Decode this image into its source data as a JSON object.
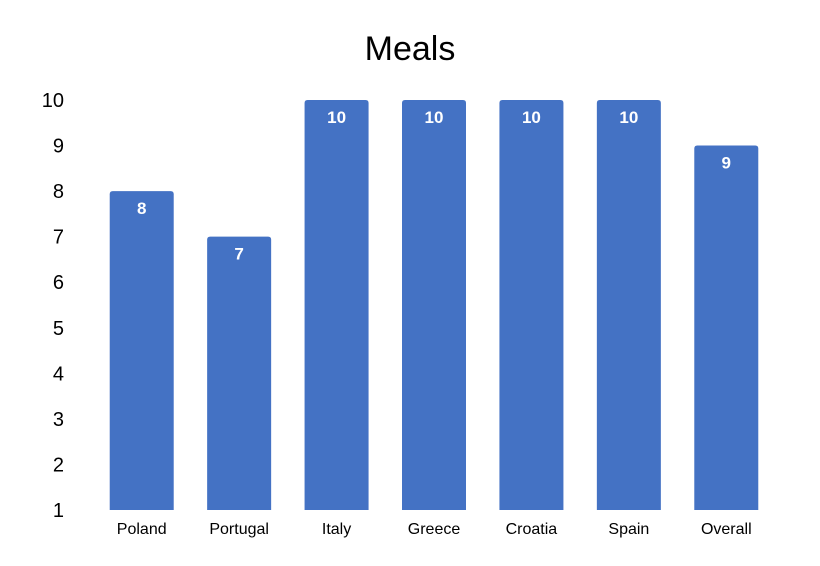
{
  "chart_data": {
    "type": "bar",
    "title": "Meals",
    "xlabel": "",
    "ylabel": "",
    "categories": [
      "Poland",
      "Portugal",
      "Italy",
      "Greece",
      "Croatia",
      "Spain",
      "Overall"
    ],
    "values": [
      8,
      7,
      10,
      10,
      10,
      10,
      9
    ],
    "data_labels": [
      "8",
      "7",
      "10",
      "10",
      "10",
      "10",
      "9"
    ],
    "ylim": [
      1,
      10
    ],
    "yticks": [
      "1",
      "2",
      "3",
      "4",
      "5",
      "6",
      "7",
      "8",
      "9",
      "10"
    ],
    "grid": false,
    "legend": "none",
    "bar_color": "#4472C4",
    "label_color": "#FFFFFF"
  }
}
